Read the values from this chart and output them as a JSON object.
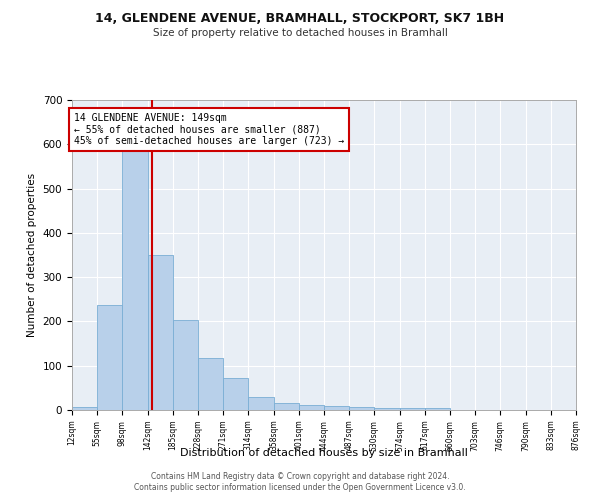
{
  "title1": "14, GLENDENE AVENUE, BRAMHALL, STOCKPORT, SK7 1BH",
  "title2": "Size of property relative to detached houses in Bramhall",
  "xlabel": "Distribution of detached houses by size in Bramhall",
  "ylabel": "Number of detached properties",
  "footer1": "Contains HM Land Registry data © Crown copyright and database right 2024.",
  "footer2": "Contains public sector information licensed under the Open Government Licence v3.0.",
  "bin_edges": [
    12,
    55,
    98,
    142,
    185,
    228,
    271,
    314,
    358,
    401,
    444,
    487,
    530,
    574,
    617,
    660,
    703,
    746,
    790,
    833,
    876
  ],
  "bar_heights": [
    7,
    237,
    590,
    350,
    203,
    118,
    73,
    29,
    16,
    11,
    8,
    6,
    5,
    5,
    5,
    0,
    0,
    0,
    0,
    0
  ],
  "bar_color": "#b8d0ea",
  "bar_edge_color": "#7aaed4",
  "property_size": 149,
  "property_label": "14 GLENDENE AVENUE: 149sqm",
  "annotation_line1": "← 55% of detached houses are smaller (887)",
  "annotation_line2": "45% of semi-detached houses are larger (723) →",
  "vline_color": "#cc0000",
  "annotation_box_edge": "#cc0000",
  "ylim": [
    0,
    700
  ],
  "yticks": [
    0,
    100,
    200,
    300,
    400,
    500,
    600,
    700
  ],
  "plot_bg_color": "#e8eef5"
}
